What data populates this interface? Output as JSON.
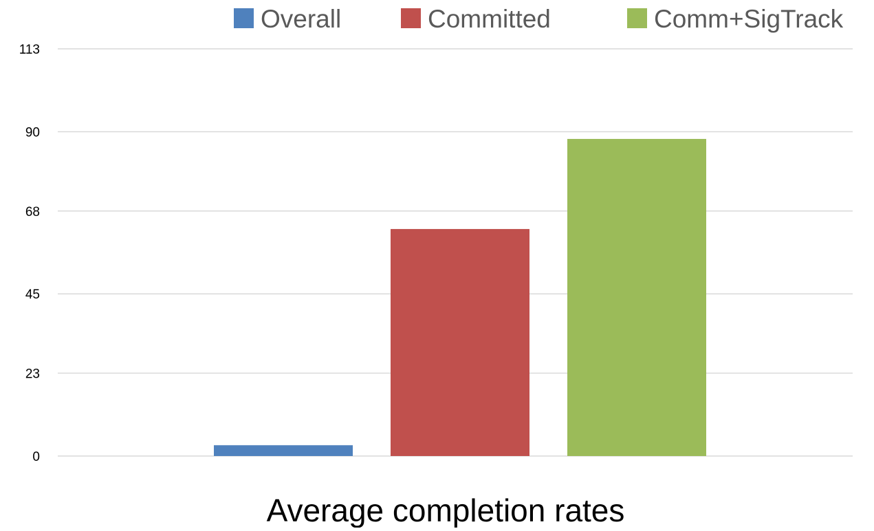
{
  "chart_data": {
    "type": "bar",
    "title": "Average completion rates",
    "xlabel": "",
    "ylabel": "",
    "categories": [
      ""
    ],
    "series": [
      {
        "name": "Overall",
        "values": [
          3
        ],
        "color": "#4f81bd"
      },
      {
        "name": "Committed",
        "values": [
          63
        ],
        "color": "#c0504d"
      },
      {
        "name": "Comm+SigTrack",
        "values": [
          88
        ],
        "color": "#9bbb59"
      }
    ],
    "ylim": [
      0,
      113
    ],
    "yticks": [
      0,
      23,
      45,
      68,
      90,
      113
    ],
    "ytick_labels": [
      "0",
      "23",
      "45",
      "68",
      "90",
      "113"
    ],
    "grid": true,
    "legend_position": "top"
  }
}
